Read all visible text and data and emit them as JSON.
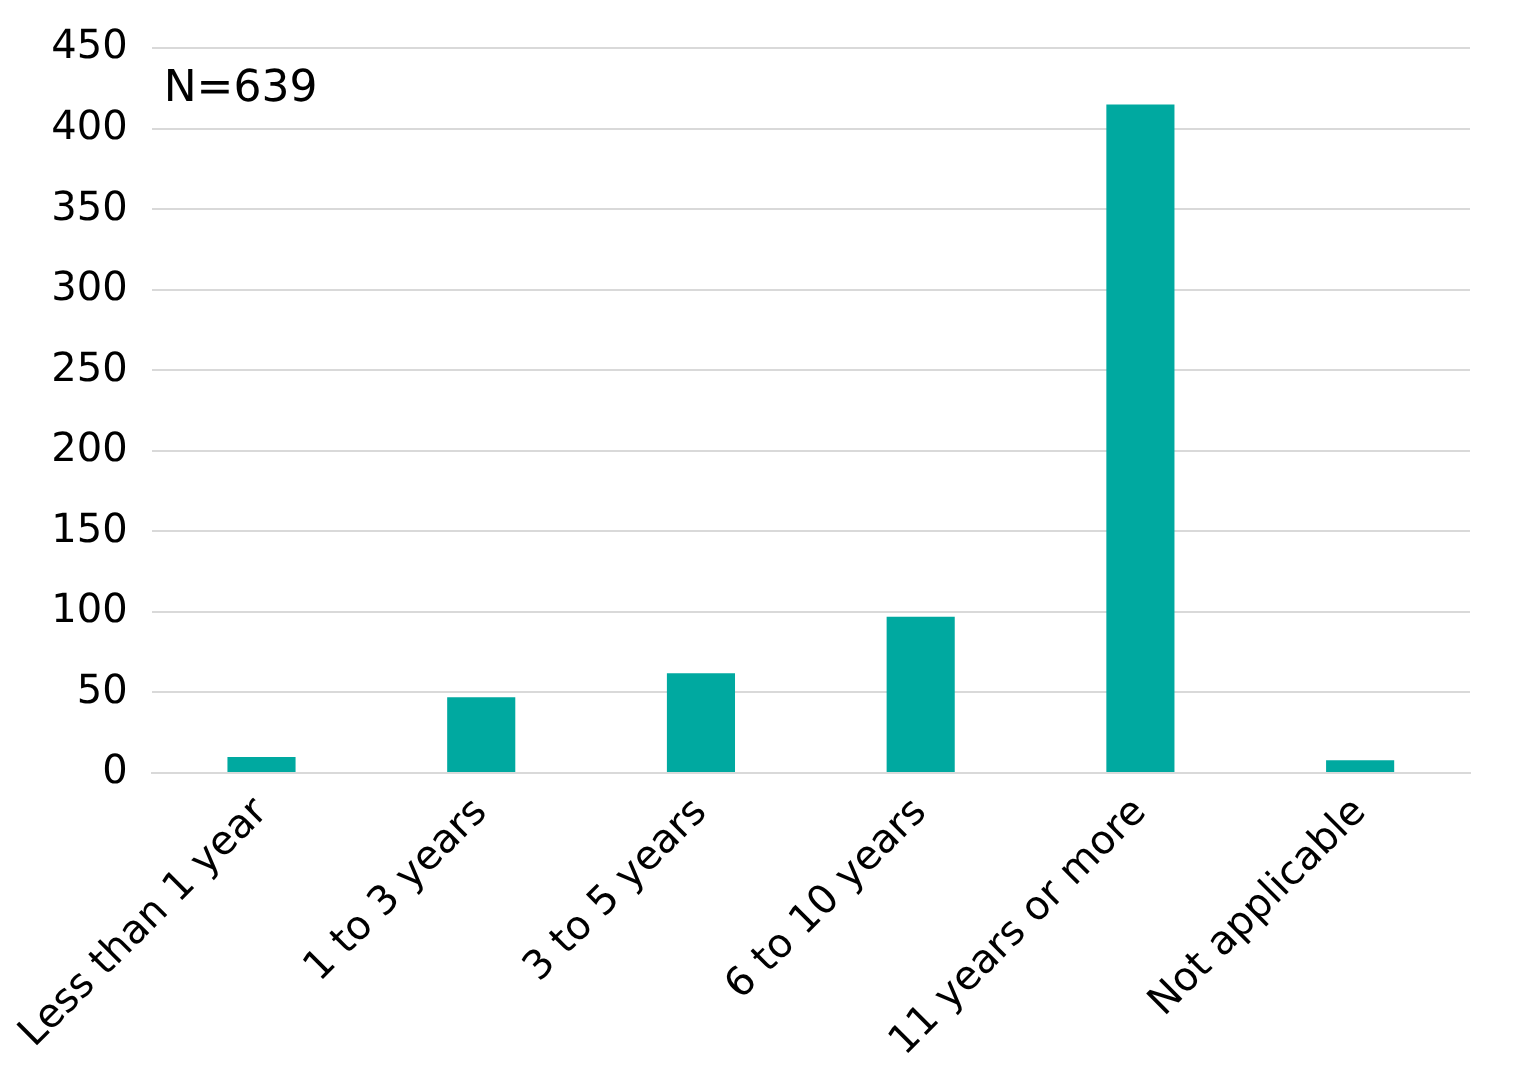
{
  "chart_data": {
    "type": "bar",
    "categories": [
      "Less than 1 year",
      "1 to 3 years",
      "3 to 5 years",
      "6 to 10 years",
      "11 years or more",
      "Not applicable"
    ],
    "values": [
      10,
      47,
      62,
      97,
      415,
      8
    ],
    "color": "#00a9a0",
    "ylim": [
      0,
      450
    ],
    "yticks": [
      0,
      50,
      100,
      150,
      200,
      250,
      300,
      350,
      400,
      450
    ],
    "grid": "y",
    "annotations": [
      "N=639"
    ]
  }
}
